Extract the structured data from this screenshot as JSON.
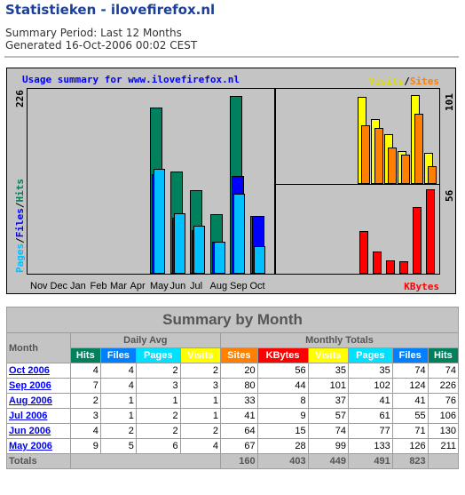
{
  "page": {
    "title": "Statistieken - ilovefirefox.nl",
    "summary_period": "Summary Period: Last 12 Months",
    "generated": "Generated 16-Oct-2006 00:02 CEST"
  },
  "graph": {
    "title": "Usage summary for www.ilovefirefox.nl",
    "legend_visits": "Visits",
    "legend_sep": "/",
    "legend_sites": "Sites",
    "legend_kbytes": "KBytes",
    "left_max": "226",
    "left_label_pages": "Pages",
    "left_label_files": "Files",
    "left_label_hits": "Hits",
    "right_top_max": "101",
    "right_bottom_max": "56",
    "months": [
      "Nov",
      "Dec",
      "Jan",
      "Feb",
      "Mar",
      "Apr",
      "May",
      "Jun",
      "Jul",
      "Aug",
      "Sep",
      "Oct"
    ]
  },
  "chart_data": {
    "type": "bar",
    "categories": [
      "Nov",
      "Dec",
      "Jan",
      "Feb",
      "Mar",
      "Apr",
      "May",
      "Jun",
      "Jul",
      "Aug",
      "Sep",
      "Oct"
    ],
    "series": [
      {
        "name": "Hits",
        "values": [
          0,
          0,
          0,
          0,
          0,
          0,
          211,
          130,
          106,
          76,
          226,
          74
        ]
      },
      {
        "name": "Files",
        "values": [
          0,
          0,
          0,
          0,
          0,
          0,
          126,
          71,
          55,
          41,
          124,
          74
        ]
      },
      {
        "name": "Pages",
        "values": [
          0,
          0,
          0,
          0,
          0,
          0,
          133,
          77,
          61,
          41,
          102,
          35
        ]
      },
      {
        "name": "Visits",
        "values": [
          0,
          0,
          0,
          0,
          0,
          0,
          99,
          74,
          57,
          37,
          101,
          35
        ]
      },
      {
        "name": "Sites",
        "values": [
          0,
          0,
          0,
          0,
          0,
          0,
          67,
          64,
          41,
          33,
          80,
          20
        ]
      },
      {
        "name": "KBytes",
        "values": [
          0,
          0,
          0,
          0,
          0,
          0,
          28,
          15,
          9,
          8,
          44,
          56
        ]
      }
    ],
    "ylim_hits": [
      0,
      226
    ],
    "ylim_visits": [
      0,
      101
    ],
    "ylim_kbytes": [
      0,
      56
    ]
  },
  "table": {
    "title": "Summary by Month",
    "month_header": "Month",
    "daily_avg": "Daily Avg",
    "monthly_totals": "Monthly Totals",
    "cols_daily": [
      "Hits",
      "Files",
      "Pages",
      "Visits"
    ],
    "cols_monthly": [
      "Sites",
      "KBytes",
      "Visits",
      "Pages",
      "Files",
      "Hits"
    ],
    "rows": [
      {
        "month": "Oct 2006",
        "d": [
          "4",
          "4",
          "2",
          "2"
        ],
        "m": [
          "20",
          "56",
          "35",
          "35",
          "74",
          "74"
        ]
      },
      {
        "month": "Sep 2006",
        "d": [
          "7",
          "4",
          "3",
          "3"
        ],
        "m": [
          "80",
          "44",
          "101",
          "102",
          "124",
          "226"
        ]
      },
      {
        "month": "Aug 2006",
        "d": [
          "2",
          "1",
          "1",
          "1"
        ],
        "m": [
          "33",
          "8",
          "37",
          "41",
          "41",
          "76"
        ]
      },
      {
        "month": "Jul 2006",
        "d": [
          "3",
          "1",
          "2",
          "1"
        ],
        "m": [
          "41",
          "9",
          "57",
          "61",
          "55",
          "106"
        ]
      },
      {
        "month": "Jun 2006",
        "d": [
          "4",
          "2",
          "2",
          "2"
        ],
        "m": [
          "64",
          "15",
          "74",
          "77",
          "71",
          "130"
        ]
      },
      {
        "month": "May 2006",
        "d": [
          "9",
          "5",
          "6",
          "4"
        ],
        "m": [
          "67",
          "28",
          "99",
          "133",
          "126",
          "211"
        ]
      }
    ],
    "totals_label": "Totals",
    "totals": [
      "160",
      "403",
      "449",
      "491",
      "823"
    ]
  }
}
